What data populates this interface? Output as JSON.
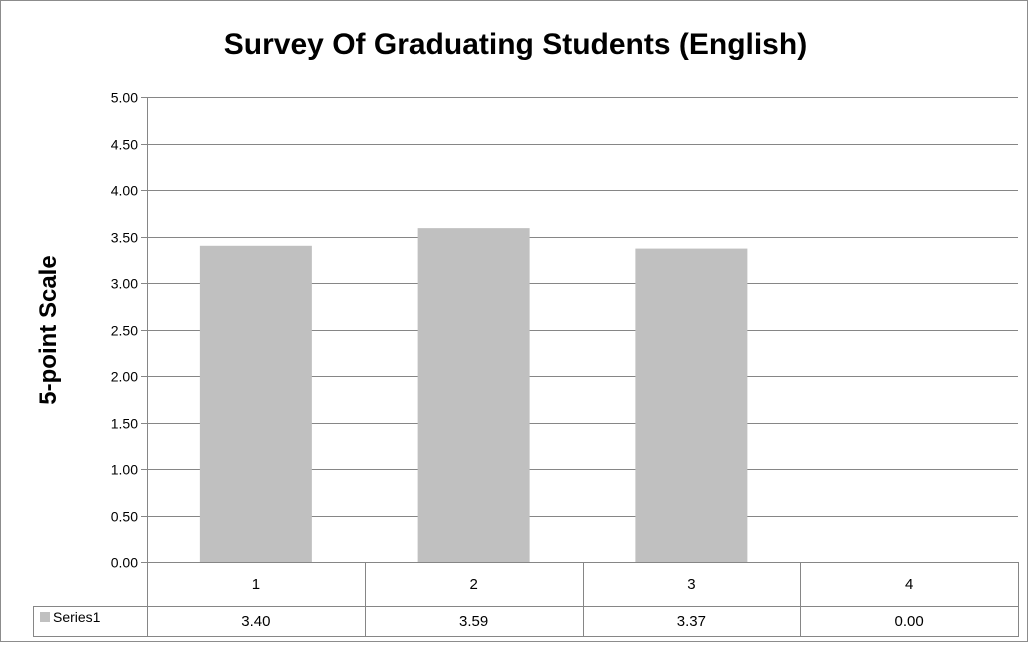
{
  "chart_data": {
    "type": "bar",
    "title": "Survey Of Graduating Students (English)",
    "ylabel": "5-point Scale",
    "xlabel": "",
    "categories": [
      "1",
      "2",
      "3",
      "4"
    ],
    "series": [
      {
        "name": "Series1",
        "values": [
          3.4,
          3.59,
          3.37,
          0.0
        ],
        "value_labels": [
          "3.40",
          "3.59",
          "3.37",
          "0.00"
        ],
        "color": "#c0c0c0"
      }
    ],
    "ylim": [
      0,
      5
    ],
    "yticks": [
      "0.00",
      "0.50",
      "1.00",
      "1.50",
      "2.00",
      "2.50",
      "3.00",
      "3.50",
      "4.00",
      "4.50",
      "5.00"
    ],
    "grid": true,
    "legend": "data table",
    "colors": {
      "bar": "#c0c0c0",
      "gridline": "#868686",
      "axis": "#868686"
    }
  }
}
